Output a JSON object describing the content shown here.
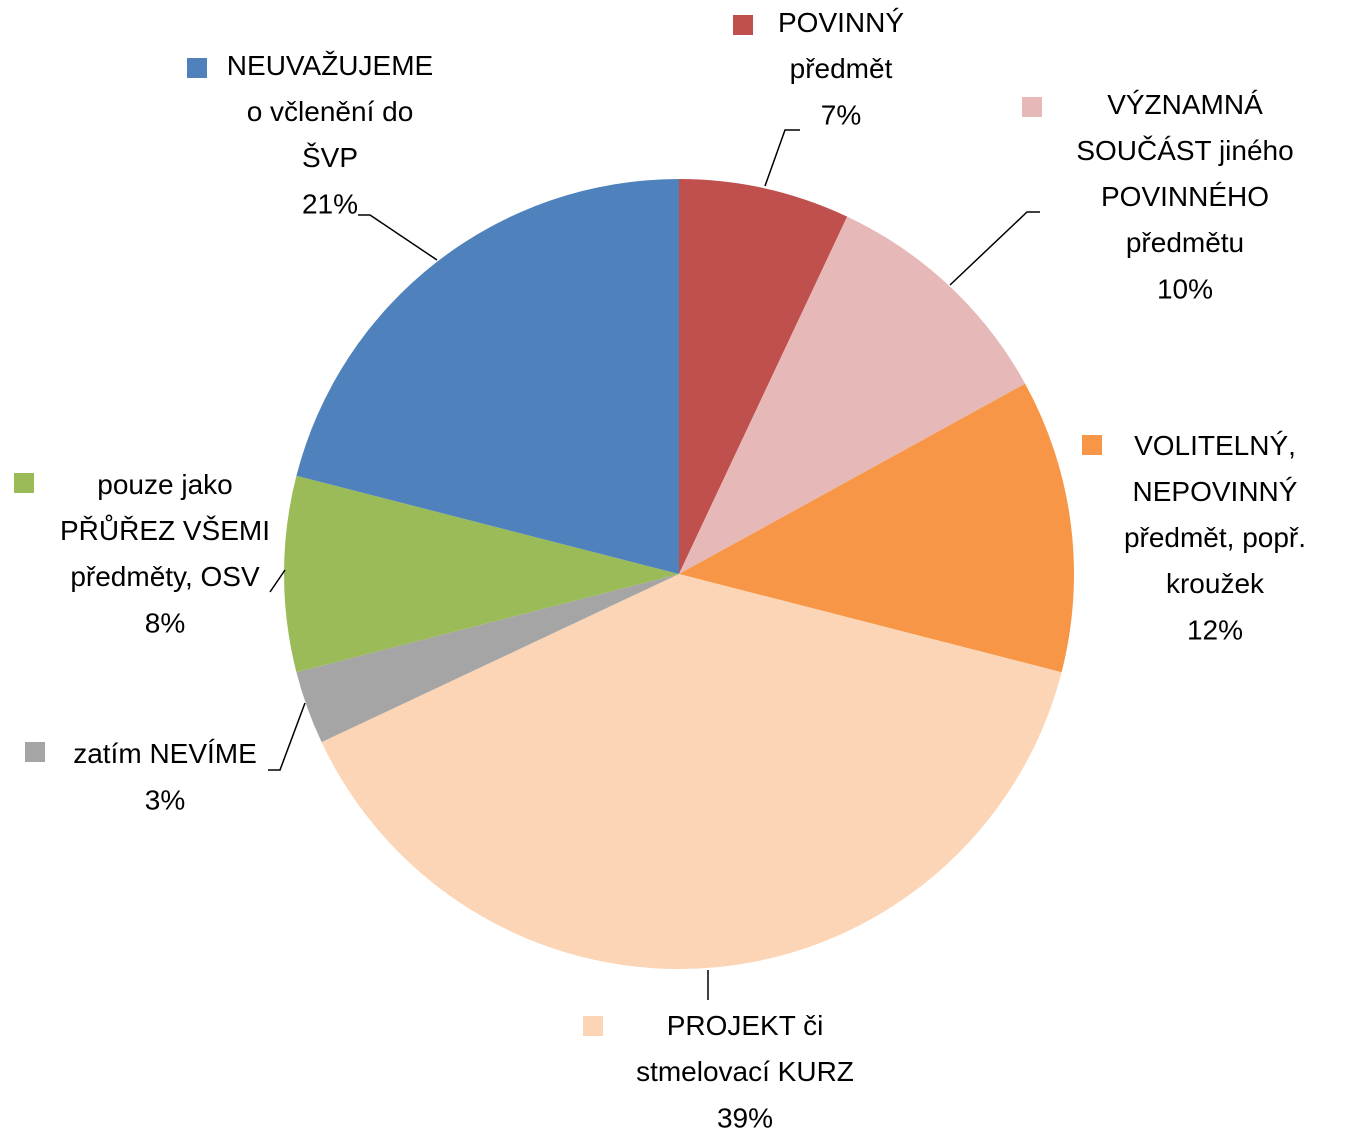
{
  "chart_data": {
    "type": "pie",
    "categories": [
      "POVINNÝ\npředmět",
      "VÝZNAMNÁ\nSOUČÁST jiného\nPOVINNÉHO\npředmětu",
      "VOLITELNÝ,\nNEPOVINNÝ\npředmět, popř.\nkroužek",
      "PROJEKT či\nstmelovací KURZ",
      "zatím NEVÍME",
      "pouze jako\nPŘŮŘEZ VŠEMI\npředměty, OSV",
      "NEUVAŽUJEME\no včlenění do\nŠVP"
    ],
    "values": [
      7,
      10,
      12,
      39,
      3,
      8,
      21
    ],
    "value_labels": [
      "7%",
      "10%",
      "12%",
      "39%",
      "3%",
      "8%",
      "21%"
    ],
    "colors": [
      "#c0504d",
      "#e6b9b8",
      "#f79646",
      "#fbd5b5",
      "#a5a5a5",
      "#9bbb59",
      "#4f81bd"
    ]
  }
}
